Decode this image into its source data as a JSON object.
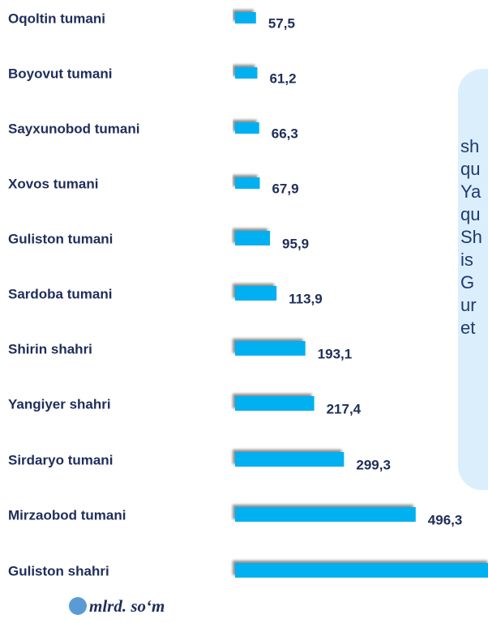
{
  "chart_data": {
    "type": "bar",
    "orientation": "horizontal",
    "categories": [
      "Oqoltin tumani",
      "Boyovut tumani",
      "Sayxunobod tumani",
      "Xovos tumani",
      "Guliston tumani",
      "Sardoba tumani",
      "Shirin shahri",
      "Yangiyer shahri",
      "Sirdaryo tumani",
      "Mirzaobod tumani",
      "Guliston shahri"
    ],
    "values": [
      57.5,
      61.2,
      66.3,
      67.9,
      95.9,
      113.9,
      193.1,
      217.4,
      299.3,
      496.3,
      700
    ],
    "value_labels": [
      "57,5",
      "61,2",
      "66,3",
      "67,9",
      "95,9",
      "113,9",
      "193,1",
      "217,4",
      "299,3",
      "496,3",
      null
    ],
    "color": "#00b0f0",
    "xlim": [
      0,
      695
    ],
    "legend": {
      "label": "mlrd. so‘m",
      "color": "#5b9bd5"
    }
  },
  "text_box": {
    "lines": [
      "sh",
      "qu",
      "Ya",
      "qu",
      "Sh",
      "is",
      "G",
      "ur",
      "et"
    ]
  }
}
